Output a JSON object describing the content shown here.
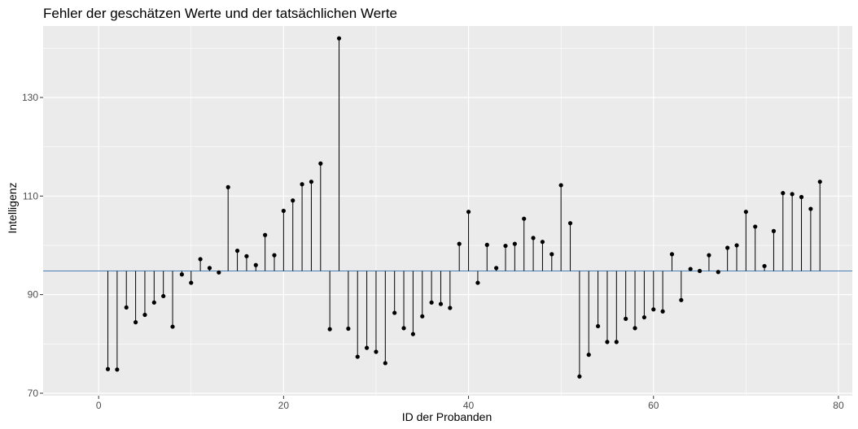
{
  "chart_data": {
    "type": "lollipop",
    "title": "Fehler der geschätzen Werte und der tatsächlichen Werte",
    "xlabel": "ID der Probanden",
    "ylabel": "Intelligenz",
    "xlim": [
      -6,
      81.5
    ],
    "ylim": [
      69.5,
      144.5
    ],
    "x_ticks": [
      0,
      20,
      40,
      60,
      80
    ],
    "y_ticks": [
      70,
      90,
      110,
      130
    ],
    "baseline": 94.8,
    "grid": true,
    "colors": {
      "panel": "#ebebeb",
      "grid": "#ffffff",
      "baseline": "#4a7fb5",
      "points": "#000000"
    },
    "x": [
      1,
      2,
      3,
      4,
      5,
      6,
      7,
      8,
      9,
      10,
      11,
      12,
      13,
      14,
      15,
      16,
      17,
      18,
      19,
      20,
      21,
      22,
      23,
      24,
      25,
      26,
      27,
      28,
      29,
      30,
      31,
      32,
      33,
      34,
      35,
      36,
      37,
      38,
      39,
      40,
      41,
      42,
      43,
      44,
      45,
      46,
      47,
      48,
      49,
      50,
      51,
      52,
      53,
      54,
      55,
      56,
      57,
      58,
      59,
      60,
      61,
      62,
      63,
      64,
      65,
      66,
      67,
      68,
      69,
      70,
      71,
      72,
      73,
      74,
      75,
      76,
      77,
      78
    ],
    "values": [
      74.9,
      74.8,
      87.4,
      84.4,
      85.9,
      88.4,
      89.7,
      83.5,
      94.1,
      92.4,
      97.2,
      95.4,
      94.5,
      111.8,
      98.9,
      97.8,
      96.0,
      102.1,
      98.0,
      107.0,
      109.1,
      112.4,
      112.9,
      116.6,
      83.0,
      142.0,
      83.1,
      77.4,
      79.2,
      78.4,
      76.1,
      86.3,
      83.2,
      82.0,
      85.6,
      88.4,
      88.1,
      87.3,
      100.3,
      106.8,
      92.4,
      100.1,
      95.4,
      99.9,
      100.3,
      105.4,
      101.5,
      100.7,
      98.2,
      112.2,
      104.5,
      73.4,
      77.8,
      83.6,
      80.4,
      80.4,
      85.1,
      83.2,
      85.4,
      87.0,
      86.6,
      98.2,
      88.9,
      95.2,
      94.8,
      98.0,
      94.6,
      99.5,
      100.0,
      106.8,
      103.8,
      95.8,
      102.9,
      110.6,
      110.4,
      109.8,
      107.4,
      112.9
    ]
  }
}
